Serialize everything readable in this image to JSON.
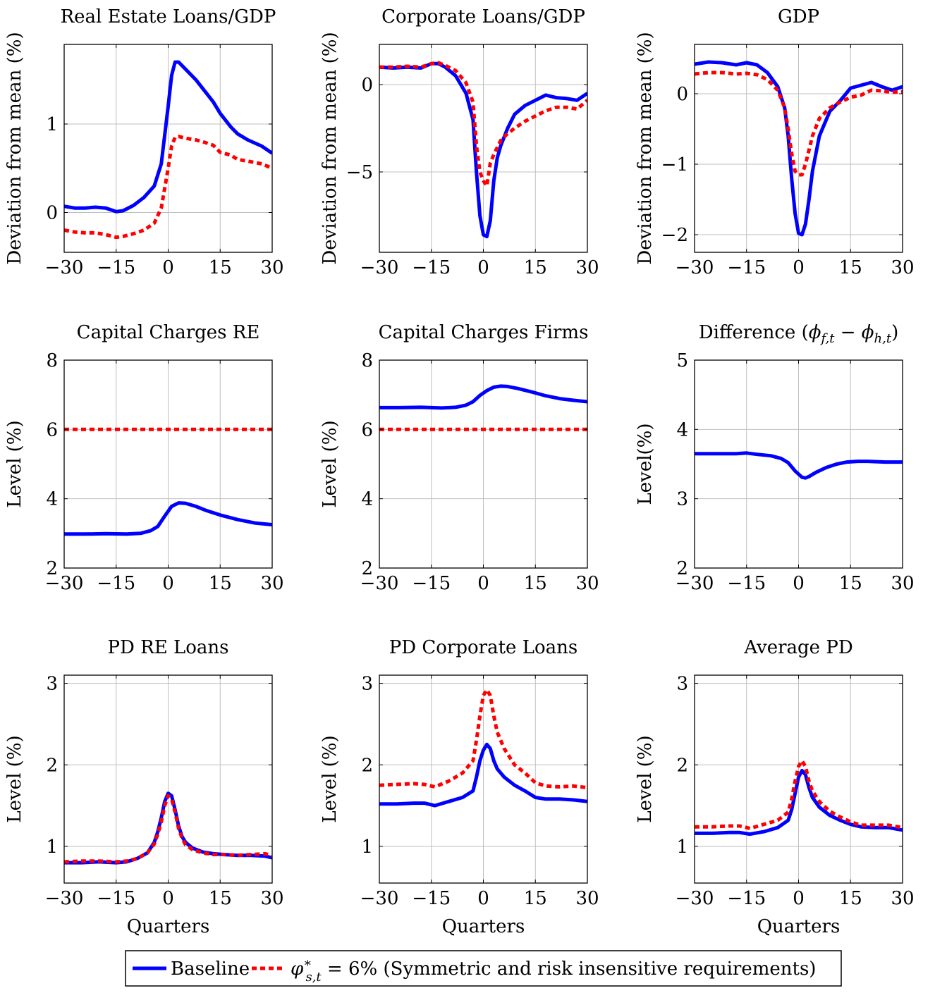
{
  "colors": {
    "baseline": "#0000ff",
    "alt": "#ff0000",
    "grid": "#bfbfbf",
    "axis": "#000000"
  },
  "legend": {
    "baseline_label": "Baseline",
    "alt_label": "φ*s,t = 6% (Symmetric and risk insensitive requirements)"
  },
  "chart_data": [
    {
      "type": "line",
      "title": "Real Estate Loans/GDP",
      "ylabel": "Deviation from mean (%)",
      "xlabel": "",
      "xlim": [
        -30,
        30
      ],
      "ylim": [
        -0.45,
        1.9
      ],
      "xticks": [
        -30,
        -15,
        0,
        15,
        30
      ],
      "yticks": [
        0,
        1
      ],
      "grid": true,
      "series": [
        {
          "name": "Baseline",
          "color": "#0000ff",
          "dashed": false,
          "x": [
            -30,
            -27,
            -24,
            -21,
            -18,
            -15,
            -13,
            -10,
            -7,
            -4,
            -2,
            0,
            1,
            2,
            3,
            5,
            8,
            10,
            13,
            15,
            18,
            20,
            23,
            27,
            30
          ],
          "y": [
            0.07,
            0.05,
            0.05,
            0.06,
            0.05,
            0.01,
            0.02,
            0.08,
            0.17,
            0.3,
            0.55,
            1.2,
            1.55,
            1.7,
            1.7,
            1.62,
            1.5,
            1.4,
            1.25,
            1.12,
            0.97,
            0.89,
            0.82,
            0.75,
            0.67
          ]
        },
        {
          "name": "φ*s,t = 6% (Symmetric and risk insensitive requirements)",
          "color": "#ff0000",
          "dashed": true,
          "x": [
            -30,
            -27,
            -24,
            -21,
            -18,
            -15,
            -13,
            -10,
            -7,
            -4,
            -2,
            0,
            1,
            2,
            3,
            5,
            8,
            10,
            13,
            15,
            18,
            20,
            23,
            27,
            30
          ],
          "y": [
            -0.2,
            -0.22,
            -0.23,
            -0.23,
            -0.25,
            -0.28,
            -0.27,
            -0.24,
            -0.2,
            -0.12,
            0.05,
            0.5,
            0.75,
            0.85,
            0.86,
            0.84,
            0.82,
            0.8,
            0.76,
            0.68,
            0.65,
            0.6,
            0.58,
            0.55,
            0.5
          ]
        }
      ]
    },
    {
      "type": "line",
      "title": "Corporate Loans/GDP",
      "ylabel": "Deviation from mean (%)",
      "xlabel": "",
      "xlim": [
        -30,
        30
      ],
      "ylim": [
        -9.6,
        2.3
      ],
      "xticks": [
        -30,
        -15,
        0,
        15,
        30
      ],
      "yticks": [
        0,
        -5
      ],
      "grid": true,
      "series": [
        {
          "name": "Baseline",
          "color": "#0000ff",
          "dashed": false,
          "x": [
            -30,
            -26,
            -22,
            -18,
            -15,
            -13,
            -11,
            -8,
            -5,
            -3,
            -2,
            -1,
            0,
            1,
            2,
            3,
            4,
            5,
            7,
            9,
            12,
            15,
            18,
            21,
            24,
            27,
            30
          ],
          "y": [
            1.0,
            0.95,
            1.0,
            0.95,
            1.2,
            1.2,
            1.0,
            0.5,
            -0.5,
            -2.0,
            -5.0,
            -7.5,
            -8.6,
            -8.7,
            -7.8,
            -5.5,
            -4.2,
            -3.5,
            -2.5,
            -1.7,
            -1.2,
            -0.9,
            -0.6,
            -0.75,
            -0.8,
            -0.9,
            -0.5
          ]
        },
        {
          "name": "φ*s,t = 6% (Symmetric and risk insensitive requirements)",
          "color": "#ff0000",
          "dashed": true,
          "x": [
            -30,
            -26,
            -22,
            -18,
            -15,
            -13,
            -11,
            -8,
            -5,
            -3,
            -2,
            -1,
            0,
            1,
            2,
            3,
            4,
            5,
            7,
            9,
            12,
            15,
            18,
            21,
            24,
            27,
            30
          ],
          "y": [
            1.0,
            1.0,
            1.05,
            1.0,
            1.2,
            1.25,
            1.1,
            0.8,
            0.1,
            -1.0,
            -3.5,
            -5.0,
            -5.5,
            -5.8,
            -4.5,
            -4.0,
            -3.6,
            -3.2,
            -2.8,
            -2.5,
            -2.1,
            -1.8,
            -1.5,
            -1.3,
            -1.3,
            -1.4,
            -0.9
          ]
        }
      ]
    },
    {
      "type": "line",
      "title": "GDP",
      "ylabel": "Deviation from mean (%)",
      "xlabel": "",
      "xlim": [
        -30,
        30
      ],
      "ylim": [
        -2.25,
        0.7
      ],
      "xticks": [
        -30,
        -15,
        0,
        15,
        30
      ],
      "yticks": [
        0,
        -1,
        -2
      ],
      "grid": true,
      "series": [
        {
          "name": "Baseline",
          "color": "#0000ff",
          "dashed": false,
          "x": [
            -30,
            -26,
            -22,
            -18,
            -15,
            -12,
            -9,
            -6,
            -4,
            -3,
            -2,
            -1,
            0,
            1,
            2,
            3,
            4,
            6,
            9,
            12,
            15,
            18,
            21,
            24,
            27,
            30
          ],
          "y": [
            0.42,
            0.45,
            0.44,
            0.41,
            0.44,
            0.41,
            0.3,
            0.1,
            -0.2,
            -0.6,
            -1.2,
            -1.7,
            -1.98,
            -2.0,
            -1.85,
            -1.5,
            -1.1,
            -0.6,
            -0.25,
            -0.1,
            0.08,
            0.12,
            0.16,
            0.1,
            0.05,
            0.1
          ]
        },
        {
          "name": "φ*s,t = 6% (Symmetric and risk insensitive requirements)",
          "color": "#ff0000",
          "dashed": true,
          "x": [
            -30,
            -26,
            -22,
            -18,
            -15,
            -12,
            -9,
            -6,
            -4,
            -3,
            -2,
            -1,
            0,
            1,
            2,
            3,
            4,
            6,
            9,
            12,
            15,
            18,
            21,
            24,
            27,
            30
          ],
          "y": [
            0.28,
            0.3,
            0.3,
            0.28,
            0.29,
            0.27,
            0.2,
            0.05,
            -0.2,
            -0.5,
            -0.85,
            -1.1,
            -1.15,
            -1.15,
            -1.0,
            -0.8,
            -0.6,
            -0.35,
            -0.2,
            -0.12,
            -0.05,
            -0.02,
            0.05,
            0.04,
            0.02,
            0.03
          ]
        }
      ]
    },
    {
      "type": "line",
      "title": "Capital Charges RE",
      "ylabel": "Level (%)",
      "xlabel": "",
      "xlim": [
        -30,
        30
      ],
      "ylim": [
        2,
        8
      ],
      "xticks": [
        -30,
        -15,
        0,
        15,
        30
      ],
      "yticks": [
        2,
        4,
        6,
        8
      ],
      "grid": true,
      "series": [
        {
          "name": "Baseline",
          "color": "#0000ff",
          "dashed": false,
          "x": [
            -30,
            -24,
            -18,
            -12,
            -8,
            -5,
            -3,
            -1,
            1,
            3,
            5,
            8,
            11,
            15,
            20,
            25,
            30
          ],
          "y": [
            2.98,
            2.98,
            2.99,
            2.98,
            3.0,
            3.08,
            3.2,
            3.5,
            3.78,
            3.88,
            3.87,
            3.78,
            3.66,
            3.53,
            3.4,
            3.3,
            3.25
          ]
        },
        {
          "name": "φ*s,t = 6% (Symmetric and risk insensitive requirements)",
          "color": "#ff0000",
          "dashed": true,
          "x": [
            -30,
            30
          ],
          "y": [
            6.0,
            6.0
          ]
        }
      ]
    },
    {
      "type": "line",
      "title": "Capital Charges Firms",
      "ylabel": "Level (%)",
      "xlabel": "",
      "xlim": [
        -30,
        30
      ],
      "ylim": [
        2,
        8
      ],
      "xticks": [
        -30,
        -15,
        0,
        15,
        30
      ],
      "yticks": [
        2,
        4,
        6,
        8
      ],
      "grid": true,
      "series": [
        {
          "name": "Baseline",
          "color": "#0000ff",
          "dashed": false,
          "x": [
            -30,
            -24,
            -18,
            -12,
            -8,
            -5,
            -3,
            -1,
            1,
            3,
            5,
            7,
            10,
            14,
            18,
            22,
            26,
            30
          ],
          "y": [
            6.63,
            6.63,
            6.64,
            6.62,
            6.64,
            6.7,
            6.8,
            6.98,
            7.12,
            7.22,
            7.25,
            7.24,
            7.18,
            7.08,
            6.97,
            6.89,
            6.84,
            6.8
          ]
        },
        {
          "name": "φ*s,t = 6% (Symmetric and risk insensitive requirements)",
          "color": "#ff0000",
          "dashed": true,
          "x": [
            -30,
            30
          ],
          "y": [
            6.0,
            6.0
          ]
        }
      ]
    },
    {
      "type": "line",
      "title": "Difference (ϕf,t − ϕh,t)",
      "ylabel": "Level(%)",
      "xlabel": "",
      "xlim": [
        -30,
        30
      ],
      "ylim": [
        2,
        5
      ],
      "xticks": [
        -30,
        -15,
        0,
        15,
        30
      ],
      "yticks": [
        2,
        3,
        4,
        5
      ],
      "grid": true,
      "series": [
        {
          "name": "Baseline",
          "color": "#0000ff",
          "dashed": false,
          "x": [
            -30,
            -24,
            -18,
            -15,
            -12,
            -8,
            -5,
            -3,
            -1,
            1,
            2,
            3,
            5,
            8,
            11,
            14,
            17,
            20,
            25,
            30
          ],
          "y": [
            3.65,
            3.65,
            3.65,
            3.66,
            3.64,
            3.62,
            3.58,
            3.52,
            3.4,
            3.31,
            3.3,
            3.32,
            3.38,
            3.45,
            3.5,
            3.53,
            3.54,
            3.54,
            3.53,
            3.53
          ]
        }
      ]
    },
    {
      "type": "line",
      "title": "PD RE Loans",
      "ylabel": "Level (%)",
      "xlabel": "Quarters",
      "xlim": [
        -30,
        30
      ],
      "ylim": [
        0.55,
        3.1
      ],
      "xticks": [
        -30,
        -15,
        0,
        15,
        30
      ],
      "yticks": [
        1,
        2,
        3
      ],
      "grid": true,
      "series": [
        {
          "name": "Baseline",
          "color": "#0000ff",
          "dashed": false,
          "x": [
            -30,
            -25,
            -20,
            -15,
            -12,
            -9,
            -6,
            -4,
            -3,
            -2,
            -1,
            0,
            1,
            2,
            3,
            4,
            5,
            7,
            10,
            13,
            16,
            20,
            24,
            28,
            30
          ],
          "y": [
            0.8,
            0.8,
            0.81,
            0.8,
            0.81,
            0.85,
            0.92,
            1.05,
            1.18,
            1.35,
            1.55,
            1.65,
            1.62,
            1.45,
            1.25,
            1.12,
            1.05,
            0.98,
            0.93,
            0.91,
            0.9,
            0.89,
            0.89,
            0.88,
            0.86
          ]
        },
        {
          "name": "φ*s,t = 6% (Symmetric and risk insensitive requirements)",
          "color": "#ff0000",
          "dashed": true,
          "x": [
            -30,
            -25,
            -20,
            -15,
            -12,
            -9,
            -6,
            -4,
            -3,
            -2,
            -1,
            0,
            1,
            2,
            3,
            4,
            5,
            7,
            10,
            13,
            16,
            20,
            24,
            28,
            30
          ],
          "y": [
            0.81,
            0.82,
            0.82,
            0.81,
            0.82,
            0.85,
            0.92,
            1.03,
            1.15,
            1.3,
            1.5,
            1.62,
            1.58,
            1.42,
            1.22,
            1.1,
            1.02,
            0.96,
            0.92,
            0.9,
            0.9,
            0.89,
            0.9,
            0.91,
            0.88
          ]
        }
      ]
    },
    {
      "type": "line",
      "title": "PD Corporate Loans",
      "ylabel": "Level (%)",
      "xlabel": "Quarters",
      "xlim": [
        -30,
        30
      ],
      "ylim": [
        0.55,
        3.1
      ],
      "xticks": [
        -30,
        -15,
        0,
        15,
        30
      ],
      "yticks": [
        1,
        2,
        3
      ],
      "grid": true,
      "series": [
        {
          "name": "Baseline",
          "color": "#0000ff",
          "dashed": false,
          "x": [
            -30,
            -25,
            -20,
            -17,
            -14,
            -10,
            -6,
            -3,
            -2,
            -1,
            0,
            1,
            2,
            3,
            4,
            6,
            9,
            12,
            15,
            18,
            22,
            26,
            30
          ],
          "y": [
            1.52,
            1.52,
            1.53,
            1.53,
            1.5,
            1.55,
            1.6,
            1.68,
            1.85,
            2.05,
            2.18,
            2.25,
            2.2,
            2.05,
            1.95,
            1.85,
            1.75,
            1.68,
            1.6,
            1.58,
            1.58,
            1.57,
            1.55
          ]
        },
        {
          "name": "φ*s,t = 6% (Symmetric and risk insensitive requirements)",
          "color": "#ff0000",
          "dashed": true,
          "x": [
            -30,
            -25,
            -20,
            -17,
            -14,
            -10,
            -6,
            -3,
            -2,
            -1,
            0,
            1,
            2,
            3,
            4,
            6,
            9,
            12,
            15,
            18,
            22,
            26,
            30
          ],
          "y": [
            1.75,
            1.76,
            1.77,
            1.76,
            1.73,
            1.8,
            1.9,
            2.05,
            2.3,
            2.6,
            2.85,
            2.92,
            2.85,
            2.6,
            2.4,
            2.2,
            2.0,
            1.9,
            1.78,
            1.74,
            1.73,
            1.74,
            1.72
          ]
        }
      ]
    },
    {
      "type": "line",
      "title": "Average PD",
      "ylabel": "Level (%)",
      "xlabel": "Quarters",
      "xlim": [
        -30,
        30
      ],
      "ylim": [
        0.55,
        3.1
      ],
      "xticks": [
        -30,
        -15,
        0,
        15,
        30
      ],
      "yticks": [
        1,
        2,
        3
      ],
      "grid": true,
      "series": [
        {
          "name": "Baseline",
          "color": "#0000ff",
          "dashed": false,
          "x": [
            -30,
            -25,
            -20,
            -17,
            -14,
            -10,
            -6,
            -3,
            -2,
            -1,
            0,
            1,
            2,
            3,
            4,
            6,
            9,
            12,
            15,
            18,
            22,
            26,
            30
          ],
          "y": [
            1.16,
            1.16,
            1.17,
            1.17,
            1.15,
            1.18,
            1.23,
            1.32,
            1.45,
            1.65,
            1.85,
            1.93,
            1.88,
            1.72,
            1.6,
            1.48,
            1.38,
            1.32,
            1.27,
            1.24,
            1.23,
            1.23,
            1.2
          ]
        },
        {
          "name": "φ*s,t = 6% (Symmetric and risk insensitive requirements)",
          "color": "#ff0000",
          "dashed": true,
          "x": [
            -30,
            -25,
            -20,
            -17,
            -14,
            -10,
            -6,
            -3,
            -2,
            -1,
            0,
            1,
            2,
            3,
            4,
            6,
            9,
            12,
            15,
            18,
            22,
            26,
            30
          ],
          "y": [
            1.24,
            1.24,
            1.25,
            1.25,
            1.22,
            1.27,
            1.32,
            1.42,
            1.58,
            1.8,
            1.98,
            2.05,
            1.98,
            1.8,
            1.68,
            1.55,
            1.43,
            1.36,
            1.3,
            1.26,
            1.26,
            1.26,
            1.23
          ]
        }
      ]
    }
  ]
}
